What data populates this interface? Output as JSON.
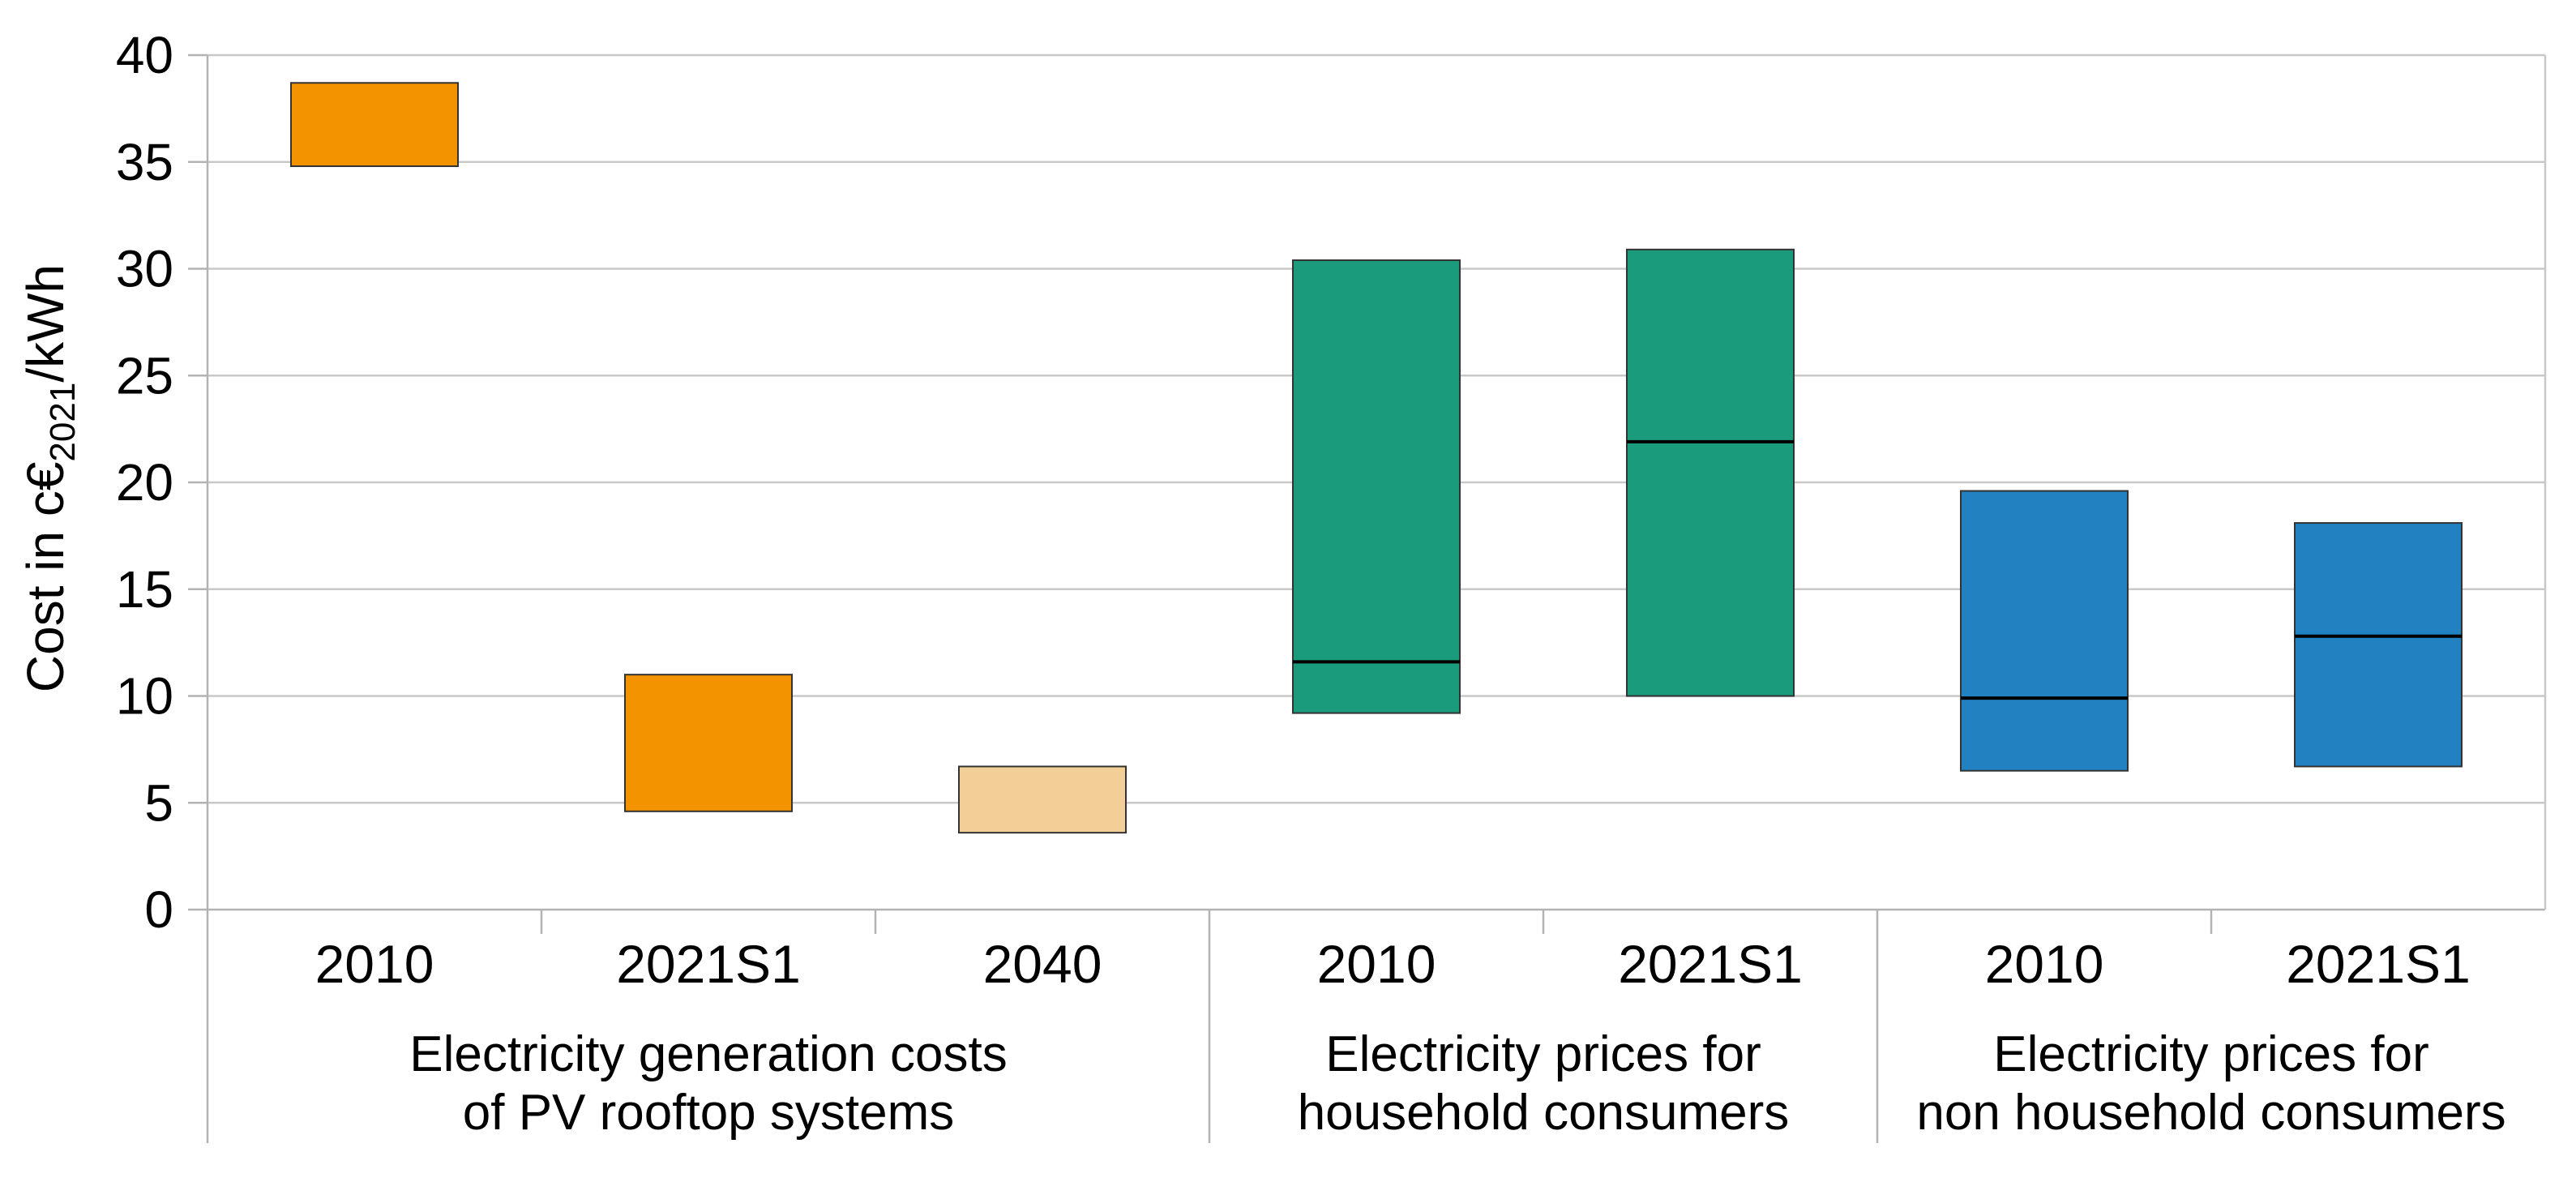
{
  "chart_data": {
    "type": "floating-bar",
    "title": "",
    "ylabel": {
      "prefix": "Cost in c€",
      "subscript": "2021",
      "suffix": "/kWh"
    },
    "ylim": [
      0,
      40
    ],
    "yticks": [
      0,
      5,
      10,
      15,
      20,
      25,
      30,
      35,
      40
    ],
    "grid": true,
    "colors": {
      "generation": "#f39300",
      "generation_forecast": "#f2cf96",
      "household": "#1a9b7c",
      "non_household": "#2181c1",
      "median_line": "#000000",
      "bar_outline": "#333333",
      "gridline": "#c8c8c8",
      "axis": "#b3b3b3"
    },
    "groups": [
      {
        "name_lines": [
          "Electricity generation costs",
          "of PV rooftop systems"
        ],
        "bars": [
          {
            "category": "2010",
            "low": 34.8,
            "high": 38.7,
            "median": null,
            "color_key": "generation"
          },
          {
            "category": "2021S1",
            "low": 4.6,
            "high": 11.0,
            "median": null,
            "color_key": "generation"
          },
          {
            "category": "2040",
            "low": 3.6,
            "high": 6.7,
            "median": null,
            "color_key": "generation_forecast"
          }
        ]
      },
      {
        "name_lines": [
          "Electricity prices for",
          "household consumers"
        ],
        "bars": [
          {
            "category": "2010",
            "low": 9.2,
            "high": 30.4,
            "median": 11.6,
            "color_key": "household"
          },
          {
            "category": "2021S1",
            "low": 10.0,
            "high": 30.9,
            "median": 21.9,
            "color_key": "household"
          }
        ]
      },
      {
        "name_lines": [
          "Electricity prices for",
          "non household consumers"
        ],
        "bars": [
          {
            "category": "2010",
            "low": 6.5,
            "high": 19.6,
            "median": 9.9,
            "color_key": "non_household"
          },
          {
            "category": "2021S1",
            "low": 6.7,
            "high": 18.1,
            "median": 12.8,
            "color_key": "non_household"
          }
        ]
      }
    ]
  }
}
